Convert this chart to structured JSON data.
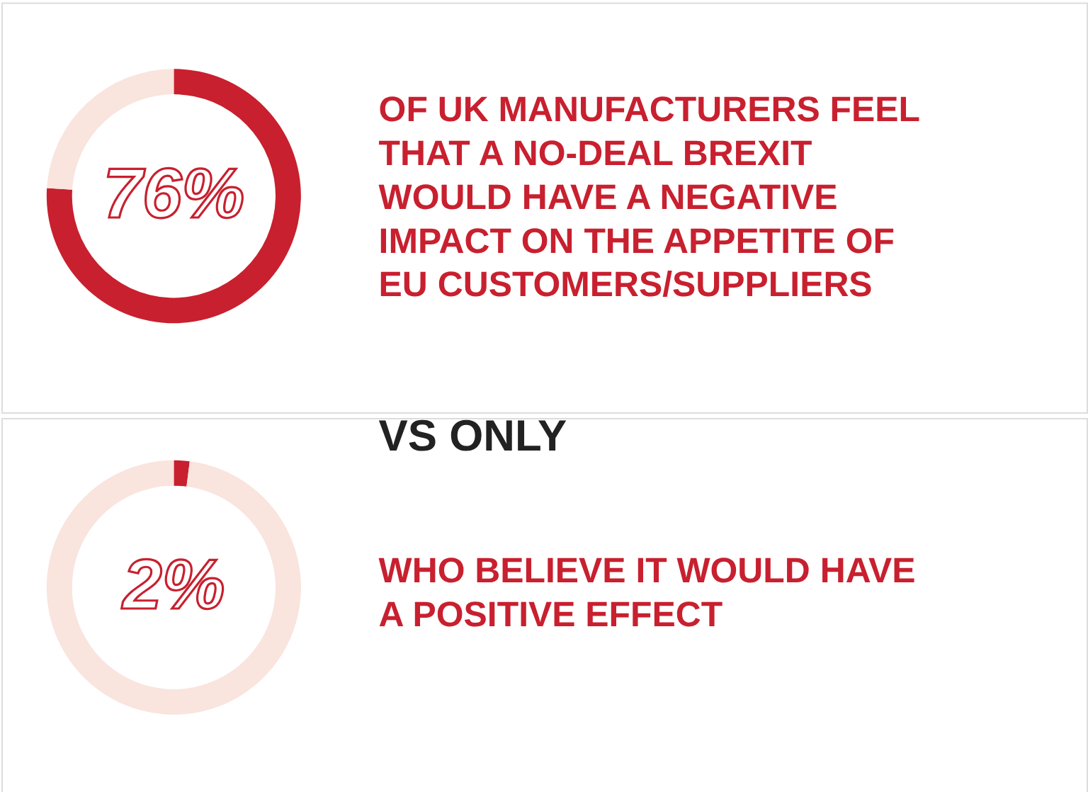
{
  "chart_data": [
    {
      "type": "donut",
      "categories": [
        null,
        null
      ],
      "values": [
        76,
        24
      ],
      "colors": [
        "#c8202f",
        "#f9e4de"
      ],
      "value_labels": [
        "76%",
        null
      ],
      "annotations": [
        "OF UK MANUFACTURERS FEEL THAT A NO-DEAL BREXIT WOULD HAVE A NEGATIVE IMPACT ON THE APPETITE OF EU CUSTOMERS/SUPPLIERS"
      ]
    },
    {
      "type": "donut",
      "title": "VS ONLY",
      "categories": [
        null,
        null
      ],
      "values": [
        2,
        98
      ],
      "colors": [
        "#c8202f",
        "#f9e4de"
      ],
      "value_labels": [
        "2%",
        null
      ],
      "annotations": [
        "WHO BELIEVE IT WOULD HAVE A POSITIVE EFFECT"
      ]
    }
  ]
}
